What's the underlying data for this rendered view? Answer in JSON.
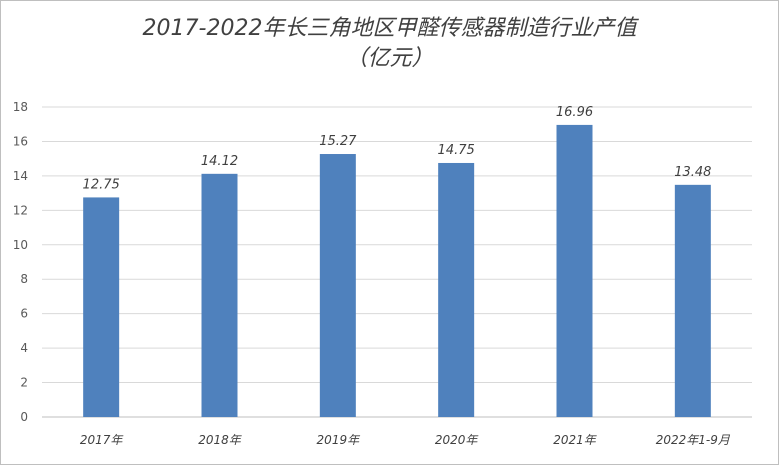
{
  "chart_data": {
    "type": "bar",
    "title_line1": "2017-2022年长三角地区甲醛传感器制造行业产值",
    "title_line2": "（亿元）",
    "categories": [
      "2017年",
      "2018年",
      "2019年",
      "2020年",
      "2021年",
      "2022年1-9月"
    ],
    "values": [
      12.75,
      14.12,
      15.27,
      14.75,
      16.96,
      13.48
    ],
    "ylim": [
      0,
      18
    ],
    "yticks": [
      0,
      2,
      4,
      6,
      8,
      10,
      12,
      14,
      16,
      18
    ],
    "grid": true,
    "legend": "none",
    "bar_color": "#4f81bd"
  }
}
